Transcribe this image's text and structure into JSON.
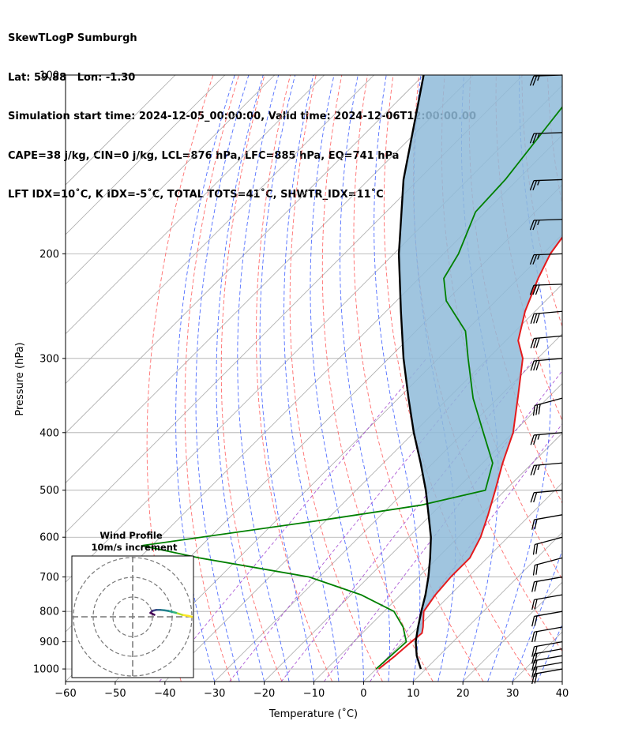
{
  "title_lines": [
    "SkewTLogP Sumburgh",
    "Lat: 59.88   Lon: -1.30",
    "Simulation start time: 2024-12-05_00:00:00, Valid time: 2024-12-06T12:00:00.00",
    "CAPE=38 j/kg, CIN=0 j/kg, LCL=876 hPa, LFC=885 hPa, EQ=741 hPa",
    "LFT IDX=10˚C, K IDX=-5˚C, TOTAL TOTS=41˚C, SHWTR_IDX=11˚C"
  ],
  "chart_data": {
    "type": "line",
    "subtype": "skew-T log-P",
    "xlabel": "Temperature (˚C)",
    "ylabel": "Pressure (hPa)",
    "xlim": [
      -60,
      40
    ],
    "ylim": [
      1050,
      100
    ],
    "y_scale": "log",
    "x_ticks": [
      -60,
      -50,
      -40,
      -30,
      -20,
      -10,
      0,
      10,
      20,
      30,
      40
    ],
    "y_ticks": [
      100,
      200,
      300,
      400,
      500,
      600,
      700,
      800,
      900,
      1000
    ],
    "x_tick_labels": [
      "−60",
      "−50",
      "−40",
      "−30",
      "−20",
      "−10",
      "0",
      "10",
      "20",
      "30",
      "40"
    ],
    "y_tick_labels": [
      "100",
      "200",
      "300",
      "400",
      "500",
      "600",
      "700",
      "800",
      "900",
      "1000"
    ],
    "grid": true,
    "series": [
      {
        "role": "temperature",
        "color": "#e41a1c",
        "points": [
          {
            "p": 1000,
            "t": 0.5
          },
          {
            "p": 950,
            "t": 1.2
          },
          {
            "p": 900,
            "t": 1.6
          },
          {
            "p": 870,
            "t": 2.0
          },
          {
            "p": 850,
            "t": 1.0
          },
          {
            "p": 800,
            "t": -2.0
          },
          {
            "p": 750,
            "t": -3.0
          },
          {
            "p": 700,
            "t": -3.5
          },
          {
            "p": 650,
            "t": -3.5
          },
          {
            "p": 600,
            "t": -5.5
          },
          {
            "p": 550,
            "t": -8.5
          },
          {
            "p": 500,
            "t": -12.0
          },
          {
            "p": 450,
            "t": -16.0
          },
          {
            "p": 400,
            "t": -20.0
          },
          {
            "p": 350,
            "t": -26.0
          },
          {
            "p": 300,
            "t": -33.0
          },
          {
            "p": 280,
            "t": -37.5
          },
          {
            "p": 250,
            "t": -42.0
          },
          {
            "p": 220,
            "t": -46.0
          },
          {
            "p": 200,
            "t": -48.5
          },
          {
            "p": 180,
            "t": -50.0
          },
          {
            "p": 160,
            "t": -50.5
          },
          {
            "p": 140,
            "t": -51.5
          },
          {
            "p": 120,
            "t": -52.0
          },
          {
            "p": 100,
            "t": -52.5
          }
        ]
      },
      {
        "role": "dewpoint",
        "color": "#008000",
        "points": [
          {
            "p": 1000,
            "t": 0.0
          },
          {
            "p": 950,
            "t": 0.3
          },
          {
            "p": 900,
            "t": 0.6
          },
          {
            "p": 850,
            "t": -3.0
          },
          {
            "p": 800,
            "t": -8.0
          },
          {
            "p": 750,
            "t": -18.0
          },
          {
            "p": 700,
            "t": -32.0
          },
          {
            "p": 650,
            "t": -58.0
          },
          {
            "p": 620,
            "t": -72.0
          },
          {
            "p": 560,
            "t": -40.0
          },
          {
            "p": 530,
            "t": -24.0
          },
          {
            "p": 500,
            "t": -14.0
          },
          {
            "p": 450,
            "t": -18.0
          },
          {
            "p": 400,
            "t": -26.0
          },
          {
            "p": 350,
            "t": -35.0
          },
          {
            "p": 300,
            "t": -44.0
          },
          {
            "p": 270,
            "t": -50.0
          },
          {
            "p": 240,
            "t": -60.0
          },
          {
            "p": 220,
            "t": -65.0
          },
          {
            "p": 200,
            "t": -67.0
          },
          {
            "p": 170,
            "t": -72.0
          },
          {
            "p": 150,
            "t": -72.5
          },
          {
            "p": 120,
            "t": -75.0
          },
          {
            "p": 100,
            "t": -77.0
          }
        ]
      },
      {
        "role": "parcel",
        "color": "#000000",
        "points": [
          {
            "p": 1000,
            "t": 9.0
          },
          {
            "p": 950,
            "t": 5.5
          },
          {
            "p": 900,
            "t": 2.5
          },
          {
            "p": 876,
            "t": 1.3
          },
          {
            "p": 850,
            "t": 0.0
          },
          {
            "p": 800,
            "t": -2.5
          },
          {
            "p": 750,
            "t": -5.0
          },
          {
            "p": 700,
            "t": -8.0
          },
          {
            "p": 650,
            "t": -11.5
          },
          {
            "p": 600,
            "t": -15.5
          },
          {
            "p": 550,
            "t": -20.5
          },
          {
            "p": 500,
            "t": -26.0
          },
          {
            "p": 450,
            "t": -32.5
          },
          {
            "p": 400,
            "t": -40.0
          },
          {
            "p": 350,
            "t": -48.0
          },
          {
            "p": 300,
            "t": -57.0
          },
          {
            "p": 250,
            "t": -67.0
          },
          {
            "p": 200,
            "t": -79.0
          },
          {
            "p": 150,
            "t": -93.0
          },
          {
            "p": 100,
            "t": -110.0
          }
        ]
      }
    ],
    "cape_shading_color": "#8fbbd9",
    "wind_barbs": [
      {
        "p": 1000,
        "speed_kt": 20,
        "dir_deg": 280
      },
      {
        "p": 975,
        "speed_kt": 20,
        "dir_deg": 280
      },
      {
        "p": 950,
        "speed_kt": 20,
        "dir_deg": 280
      },
      {
        "p": 925,
        "speed_kt": 20,
        "dir_deg": 280
      },
      {
        "p": 900,
        "speed_kt": 20,
        "dir_deg": 280
      },
      {
        "p": 850,
        "speed_kt": 20,
        "dir_deg": 280
      },
      {
        "p": 800,
        "speed_kt": 20,
        "dir_deg": 280
      },
      {
        "p": 750,
        "speed_kt": 20,
        "dir_deg": 280
      },
      {
        "p": 700,
        "speed_kt": 20,
        "dir_deg": 280
      },
      {
        "p": 650,
        "speed_kt": 20,
        "dir_deg": 285
      },
      {
        "p": 600,
        "speed_kt": 20,
        "dir_deg": 285
      },
      {
        "p": 550,
        "speed_kt": 20,
        "dir_deg": 280
      },
      {
        "p": 500,
        "speed_kt": 20,
        "dir_deg": 275
      },
      {
        "p": 450,
        "speed_kt": 25,
        "dir_deg": 275
      },
      {
        "p": 400,
        "speed_kt": 25,
        "dir_deg": 275
      },
      {
        "p": 350,
        "speed_kt": 30,
        "dir_deg": 285
      },
      {
        "p": 300,
        "speed_kt": 30,
        "dir_deg": 275
      },
      {
        "p": 275,
        "speed_kt": 30,
        "dir_deg": 275
      },
      {
        "p": 250,
        "speed_kt": 30,
        "dir_deg": 275
      },
      {
        "p": 225,
        "speed_kt": 30,
        "dir_deg": 272
      },
      {
        "p": 200,
        "speed_kt": 25,
        "dir_deg": 272
      },
      {
        "p": 175,
        "speed_kt": 25,
        "dir_deg": 272
      },
      {
        "p": 150,
        "speed_kt": 25,
        "dir_deg": 272
      },
      {
        "p": 125,
        "speed_kt": 25,
        "dir_deg": 272
      },
      {
        "p": 100,
        "speed_kt": 25,
        "dir_deg": 272
      }
    ],
    "hodograph": {
      "title_lines": [
        "Wind Profile",
        "10m/s increment"
      ],
      "ring_spacing_ms": 10,
      "rings": 3,
      "points": [
        {
          "u": 30,
          "v": 0
        },
        {
          "u": 28,
          "v": 0.5
        },
        {
          "u": 25,
          "v": 1
        },
        {
          "u": 22,
          "v": 2
        },
        {
          "u": 20,
          "v": 2.5
        },
        {
          "u": 18,
          "v": 3
        },
        {
          "u": 16,
          "v": 3.3
        },
        {
          "u": 14,
          "v": 3.5
        },
        {
          "u": 12,
          "v": 3.5
        },
        {
          "u": 10,
          "v": 3.0
        },
        {
          "u": 9,
          "v": 2.0
        },
        {
          "u": 11,
          "v": 1.0
        }
      ]
    }
  },
  "colors": {
    "isotherm_grid": "#aaaaaa",
    "dry_adiabat": "#ff5555",
    "moist_adiabat": "#3355ff",
    "mixing_ratio": "#9933cc"
  }
}
